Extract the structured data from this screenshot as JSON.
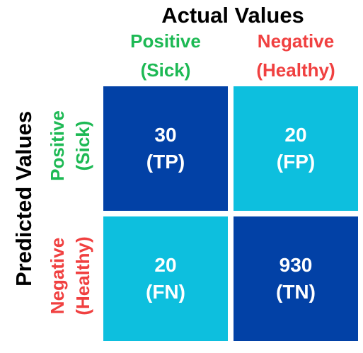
{
  "header": {
    "actual_title": "Actual Values",
    "predicted_title": "Predicted Values"
  },
  "columns": [
    {
      "line1": "Positive",
      "line2": "(Sick)"
    },
    {
      "line1": "Negative",
      "line2": "(Healthy)"
    }
  ],
  "rows": [
    {
      "line1": "Positive",
      "line2": "(Sick)"
    },
    {
      "line1": "Negative",
      "line2": "(Healthy)"
    }
  ],
  "cells": {
    "tp": {
      "value": "30",
      "label": "(TP)"
    },
    "fp": {
      "value": "20",
      "label": "(FP)"
    },
    "fn": {
      "value": "20",
      "label": "(FN)"
    },
    "tn": {
      "value": "930",
      "label": "(TN)"
    }
  },
  "colors": {
    "positive": "#1db954",
    "negative": "#f04040",
    "dark_blue": "#0241a6",
    "light_blue": "#0dbfde",
    "title": "#000000",
    "cell_text": "#ffffff"
  }
}
